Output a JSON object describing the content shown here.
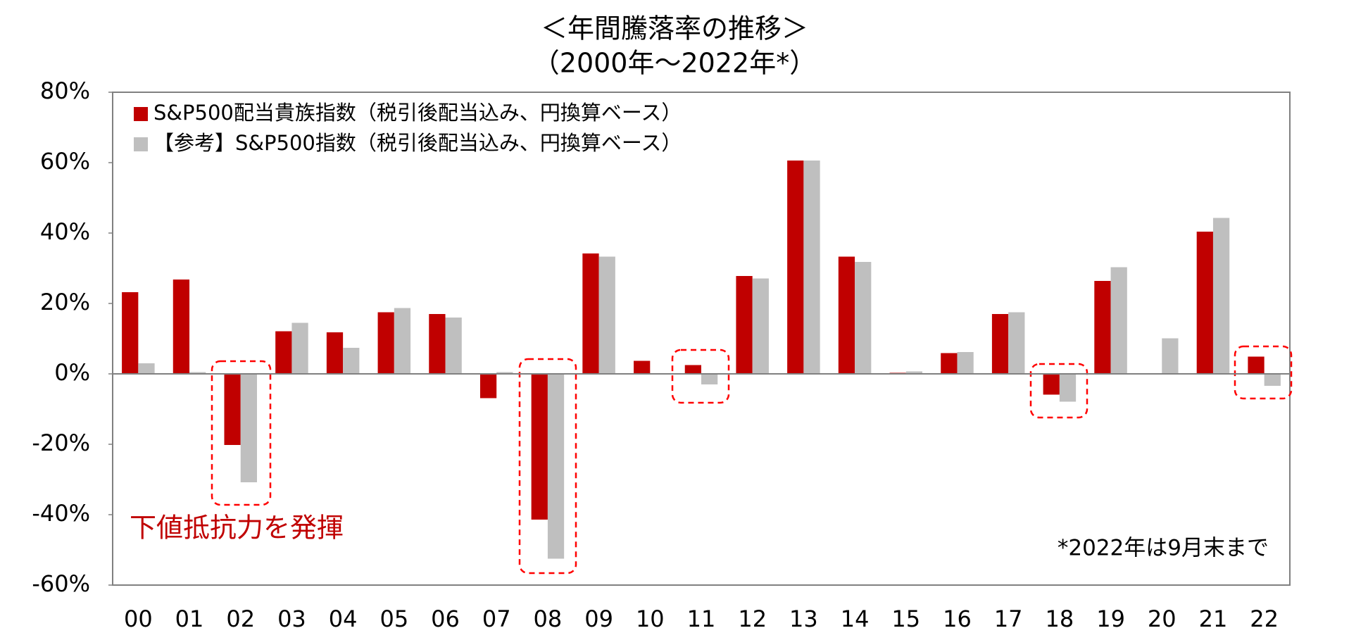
{
  "chart_data": {
    "type": "bar",
    "title": "＜年間騰落率の推移＞",
    "subtitle": "（2000年～2022年*）",
    "categories": [
      "00",
      "01",
      "02",
      "03",
      "04",
      "05",
      "06",
      "07",
      "08",
      "09",
      "10",
      "11",
      "12",
      "13",
      "14",
      "15",
      "16",
      "17",
      "18",
      "19",
      "20",
      "21",
      "22"
    ],
    "series": [
      {
        "name": "S&P500配当貴族指数（税引後配当込み、円換算ベース）",
        "color": "#c00000",
        "values": [
          23.2,
          26.8,
          -20.2,
          12.1,
          11.8,
          17.5,
          17.0,
          -6.9,
          -41.4,
          34.2,
          3.7,
          2.5,
          27.8,
          60.6,
          33.3,
          0.3,
          5.9,
          17.0,
          -5.9,
          26.4,
          0,
          40.4,
          4.9
        ]
      },
      {
        "name": "【参考】S&P500指数（税引後配当込み、円換算ベース）",
        "color": "#bfbfbf",
        "values": [
          3.0,
          0.5,
          -30.8,
          14.5,
          7.4,
          18.7,
          16.0,
          0.5,
          -52.5,
          33.3,
          0,
          -3.0,
          27.1,
          60.6,
          31.8,
          0.7,
          6.2,
          17.5,
          -7.9,
          30.3,
          10.1,
          44.3,
          -3.4
        ]
      }
    ],
    "ylim": [
      -60,
      80
    ],
    "yticks": [
      {
        "value": -60,
        "label": "-60%"
      },
      {
        "value": -40,
        "label": "-40%"
      },
      {
        "value": -20,
        "label": "-20%"
      },
      {
        "value": 0,
        "label": "0%"
      },
      {
        "value": 20,
        "label": "20%"
      },
      {
        "value": 40,
        "label": "40%"
      },
      {
        "value": 60,
        "label": "60%"
      },
      {
        "value": 80,
        "label": "80%"
      }
    ],
    "legend": "upper left",
    "grid": false,
    "annotations": [
      "下値抵抗力を発揮",
      "*2022年は9月末まで"
    ]
  }
}
